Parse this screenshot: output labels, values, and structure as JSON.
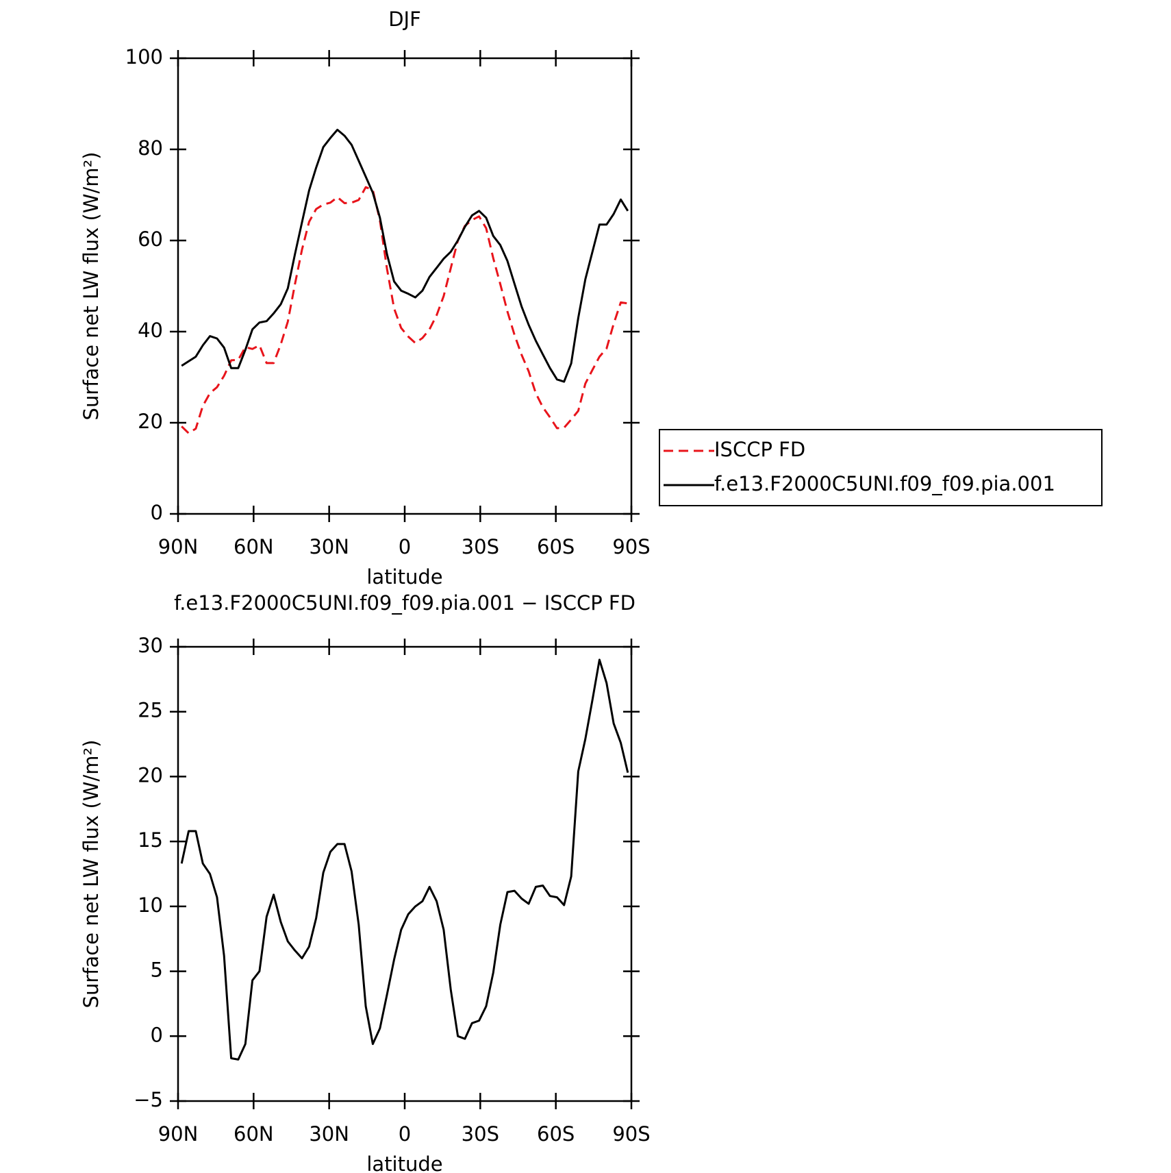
{
  "chart_data": [
    {
      "type": "line",
      "title": "DJF",
      "xlabel": "latitude",
      "ylabel": "Surface net LW flux (W/m²)",
      "x": [
        88.59,
        85.78,
        82.97,
        80.16,
        77.34,
        74.53,
        71.72,
        68.91,
        66.09,
        63.28,
        60.47,
        57.66,
        54.84,
        52.03,
        49.22,
        46.41,
        43.59,
        40.78,
        37.97,
        35.16,
        32.34,
        29.53,
        26.72,
        23.91,
        21.09,
        18.28,
        15.47,
        12.66,
        9.84,
        7.03,
        4.22,
        1.41,
        -1.41,
        -4.22,
        -7.03,
        -9.84,
        -12.66,
        -15.47,
        -18.28,
        -21.09,
        -23.91,
        -26.72,
        -29.53,
        -32.34,
        -35.16,
        -37.97,
        -40.78,
        -43.59,
        -46.41,
        -49.22,
        -52.03,
        -54.84,
        -57.66,
        -60.47,
        -63.28,
        -66.09,
        -68.91,
        -71.72,
        -74.53,
        -77.34,
        -80.16,
        -82.97,
        -85.78,
        -88.59
      ],
      "series": [
        {
          "name": "ISCCP FD",
          "color": "#e8141b",
          "dash": true,
          "values": [
            19.2,
            17.7,
            18.7,
            23.7,
            26.5,
            27.8,
            30.3,
            33.7,
            33.8,
            36.6,
            36.2,
            37.0,
            33.1,
            33.1,
            37.2,
            42.2,
            50.4,
            58.0,
            64.1,
            66.9,
            67.9,
            68.3,
            69.5,
            68.2,
            68.3,
            68.9,
            71.7,
            71.1,
            64.4,
            53.8,
            45.1,
            40.8,
            38.9,
            37.5,
            38.6,
            40.5,
            43.6,
            47.8,
            53.9,
            60.0,
            63.2,
            64.5,
            65.3,
            62.7,
            56.1,
            50.4,
            44.4,
            39.3,
            34.9,
            31.3,
            26.5,
            23.4,
            21.2,
            18.8,
            18.9,
            20.7,
            22.6,
            28.6,
            31.6,
            34.5,
            36.3,
            41.7,
            46.4,
            46.2
          ]
        },
        {
          "name": "f.e13.F2000C5UNI.f09_f09.pia.001",
          "color": "#000000",
          "dash": false,
          "values": [
            32.5,
            33.5,
            34.5,
            37.0,
            39.0,
            38.5,
            36.5,
            32.0,
            32.0,
            36.0,
            40.5,
            42.0,
            42.3,
            44.0,
            46.0,
            49.5,
            57.0,
            64.0,
            71.0,
            76.0,
            80.5,
            82.5,
            84.3,
            83.0,
            81.0,
            77.5,
            74.0,
            70.5,
            65.0,
            57.0,
            51.0,
            49.0,
            48.3,
            47.5,
            49.0,
            52.0,
            54.0,
            56.0,
            57.5,
            60.0,
            63.0,
            65.5,
            66.5,
            65.0,
            61.0,
            59.0,
            55.5,
            50.5,
            45.5,
            41.5,
            38.0,
            35.0,
            32.0,
            29.5,
            29.0,
            33.0,
            43.0,
            51.5,
            57.5,
            63.5,
            63.5,
            65.8,
            69.0,
            66.5
          ]
        }
      ],
      "xlim": [
        90,
        -90
      ],
      "ylim": [
        0,
        100
      ],
      "xticks": [
        {
          "value": 90,
          "label": "90N"
        },
        {
          "value": 60,
          "label": "60N"
        },
        {
          "value": 30,
          "label": "30N"
        },
        0,
        {
          "value": -30,
          "label": "30S"
        },
        {
          "value": -60,
          "label": "60S"
        },
        {
          "value": -90,
          "label": "90S"
        }
      ],
      "yticks": [
        0,
        20,
        40,
        60,
        80,
        100
      ],
      "legend": "outside right"
    },
    {
      "type": "line",
      "title": "f.e13.F2000C5UNI.f09_f09.pia.001 − ISCCP FD",
      "xlabel": "latitude",
      "ylabel": "Surface net LW flux (W/m²)",
      "x": [
        88.59,
        85.78,
        82.97,
        80.16,
        77.34,
        74.53,
        71.72,
        68.91,
        66.09,
        63.28,
        60.47,
        57.66,
        54.84,
        52.03,
        49.22,
        46.41,
        43.59,
        40.78,
        37.97,
        35.16,
        32.34,
        29.53,
        26.72,
        23.91,
        21.09,
        18.28,
        15.47,
        12.66,
        9.84,
        7.03,
        4.22,
        1.41,
        -1.41,
        -4.22,
        -7.03,
        -9.84,
        -12.66,
        -15.47,
        -18.28,
        -21.09,
        -23.91,
        -26.72,
        -29.53,
        -32.34,
        -35.16,
        -37.97,
        -40.78,
        -43.59,
        -46.41,
        -49.22,
        -52.03,
        -54.84,
        -57.66,
        -60.47,
        -63.28,
        -66.09,
        -68.91,
        -71.72,
        -74.53,
        -77.34,
        -80.16,
        -82.97,
        -85.78,
        -88.59
      ],
      "series": [
        {
          "color": "#000000",
          "dash": false,
          "values": [
            13.3,
            15.8,
            15.8,
            13.3,
            12.5,
            10.7,
            6.2,
            -1.7,
            -1.8,
            -0.6,
            4.3,
            5.0,
            9.2,
            10.9,
            8.8,
            7.3,
            6.6,
            6.0,
            6.9,
            9.1,
            12.6,
            14.2,
            14.8,
            14.8,
            12.7,
            8.6,
            2.3,
            -0.6,
            0.6,
            3.2,
            5.9,
            8.2,
            9.4,
            10.0,
            10.4,
            11.5,
            10.4,
            8.2,
            3.6,
            0.0,
            -0.2,
            1.0,
            1.2,
            2.3,
            4.9,
            8.6,
            11.1,
            11.2,
            10.6,
            10.2,
            11.5,
            11.6,
            10.8,
            10.7,
            10.1,
            12.3,
            20.4,
            22.9,
            25.9,
            29.0,
            27.2,
            24.1,
            22.6,
            20.3
          ]
        }
      ],
      "xlim": [
        90,
        -90
      ],
      "ylim": [
        -5,
        30
      ],
      "xticks": [
        {
          "value": 90,
          "label": "90N"
        },
        {
          "value": 60,
          "label": "60N"
        },
        {
          "value": 30,
          "label": "30N"
        },
        0,
        {
          "value": -30,
          "label": "30S"
        },
        {
          "value": -60,
          "label": "60S"
        },
        {
          "value": -90,
          "label": "90S"
        }
      ],
      "yticks": [
        {
          "value": -5,
          "label": "−5"
        },
        0,
        5,
        10,
        15,
        20,
        25,
        30
      ]
    }
  ]
}
